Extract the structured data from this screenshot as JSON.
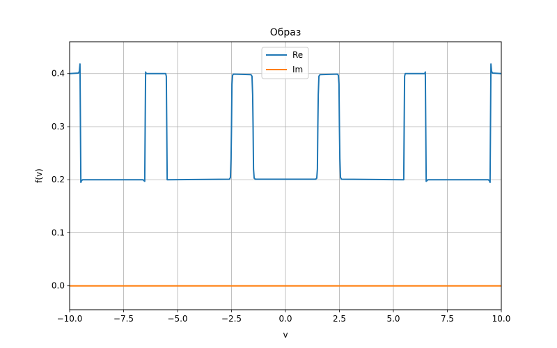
{
  "chart_data": {
    "type": "line",
    "title": "Образ",
    "xlabel": "v",
    "ylabel": "f(v)",
    "xlim": [
      -10.0,
      10.0
    ],
    "ylim": [
      -0.045,
      0.46
    ],
    "grid": true,
    "legend_position": "top-center",
    "x_ticks": [
      -10.0,
      -7.5,
      -5.0,
      -2.5,
      0.0,
      2.5,
      5.0,
      7.5,
      10.0
    ],
    "x_tick_labels": [
      "−10.0",
      "−7.5",
      "−5.0",
      "−2.5",
      "0.0",
      "2.5",
      "5.0",
      "7.5",
      "10.0"
    ],
    "y_ticks": [
      0.0,
      0.1,
      0.2,
      0.3,
      0.4
    ],
    "y_tick_labels": [
      "0.0",
      "0.1",
      "0.2",
      "0.3",
      "0.4"
    ],
    "series": [
      {
        "name": "Re",
        "color": "#1f77b4",
        "x": [
          -10.0,
          -9.6,
          -9.55,
          -9.52,
          -9.48,
          -9.45,
          -9.4,
          -6.6,
          -6.52,
          -6.5,
          -6.48,
          -6.45,
          -5.55,
          -5.52,
          -5.5,
          -5.48,
          -5.45,
          -2.6,
          -2.55,
          -2.52,
          -2.5,
          -2.48,
          -2.45,
          -2.4,
          -1.6,
          -1.55,
          -1.52,
          -1.5,
          -1.48,
          -1.45,
          -1.4,
          1.4,
          1.45,
          1.48,
          1.5,
          1.52,
          1.55,
          1.6,
          2.4,
          2.45,
          2.48,
          2.5,
          2.52,
          2.55,
          2.6,
          5.45,
          5.48,
          5.5,
          5.52,
          5.55,
          6.45,
          6.48,
          6.5,
          6.52,
          6.6,
          9.4,
          9.45,
          9.48,
          9.52,
          9.55,
          9.6,
          10.0
        ],
        "y": [
          0.4,
          0.401,
          0.404,
          0.418,
          0.195,
          0.198,
          0.2,
          0.2,
          0.197,
          0.3,
          0.403,
          0.4,
          0.4,
          0.395,
          0.3,
          0.2,
          0.2,
          0.201,
          0.204,
          0.24,
          0.3,
          0.38,
          0.397,
          0.399,
          0.398,
          0.395,
          0.36,
          0.3,
          0.22,
          0.203,
          0.201,
          0.201,
          0.203,
          0.22,
          0.3,
          0.36,
          0.395,
          0.398,
          0.399,
          0.397,
          0.38,
          0.3,
          0.24,
          0.204,
          0.201,
          0.2,
          0.2,
          0.3,
          0.395,
          0.4,
          0.4,
          0.403,
          0.3,
          0.197,
          0.2,
          0.2,
          0.198,
          0.195,
          0.418,
          0.404,
          0.401,
          0.4
        ]
      },
      {
        "name": "Im",
        "color": "#ff7f0e",
        "x": [
          -10.0,
          10.0
        ],
        "y": [
          0.0,
          0.0
        ]
      }
    ]
  }
}
